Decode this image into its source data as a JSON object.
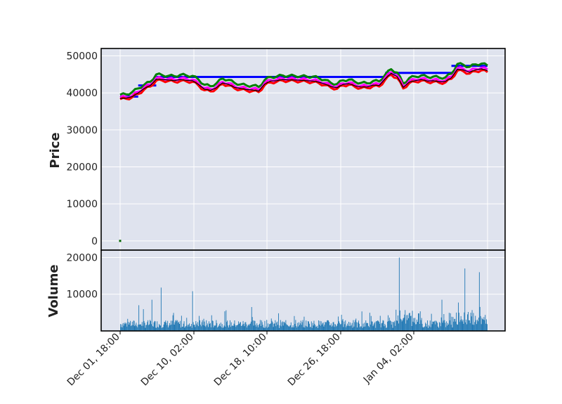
{
  "chart_data": {
    "type": "line",
    "title": "",
    "price_panel": {
      "ylabel": "Price",
      "ylim": [
        -2500,
        52000
      ],
      "yticks": [
        0,
        10000,
        20000,
        30000,
        40000,
        50000
      ],
      "series": [
        {
          "key": "upper",
          "color": "#008000",
          "values": [
            39500,
            39600,
            40200,
            41200,
            42200,
            43000,
            45000,
            44800,
            44600,
            44500,
            44900,
            44700,
            44600,
            43600,
            42200,
            41800,
            42600,
            43900,
            43500,
            42700,
            42300,
            42000,
            42000,
            41600,
            43500,
            44300,
            44400,
            44700,
            44600,
            44600,
            44500,
            44400,
            44400,
            44000,
            43500,
            42700,
            42400,
            43400,
            43600,
            43000,
            42700,
            42600,
            43200,
            43100,
            44900,
            46400,
            45500,
            42500,
            44000,
            44400,
            44700,
            44300,
            44400,
            44100,
            44200,
            45200,
            47800,
            47600,
            47000,
            47700,
            47900,
            47400
          ]
        },
        {
          "key": "middle",
          "color": "#ff00ff",
          "values": [
            38800,
            38900,
            39300,
            40300,
            41500,
            42300,
            44000,
            43900,
            43800,
            43600,
            43900,
            43800,
            43600,
            42600,
            41300,
            41000,
            41700,
            43000,
            42600,
            41800,
            41500,
            41200,
            41200,
            40800,
            42700,
            43500,
            43600,
            43900,
            43800,
            43800,
            43700,
            43600,
            43500,
            43200,
            42700,
            42000,
            41700,
            42600,
            42800,
            42200,
            41900,
            41900,
            42400,
            42300,
            44100,
            45600,
            44700,
            41800,
            43200,
            43600,
            43900,
            43500,
            43600,
            43300,
            43400,
            44400,
            46700,
            46500,
            45900,
            46500,
            46800,
            46300
          ]
        },
        {
          "key": "lower",
          "color": "#ff0000",
          "values": [
            38300,
            38400,
            38800,
            39700,
            40900,
            41700,
            43300,
            43300,
            43200,
            43000,
            43200,
            43100,
            43000,
            42000,
            40700,
            40400,
            41100,
            42400,
            42000,
            41200,
            40900,
            40600,
            40500,
            40200,
            42100,
            42800,
            43000,
            43300,
            43200,
            43200,
            43100,
            43000,
            42900,
            42600,
            42100,
            41400,
            41100,
            42000,
            42200,
            41600,
            41300,
            41300,
            41800,
            41700,
            43500,
            44900,
            44000,
            41200,
            42600,
            43000,
            43300,
            42900,
            43000,
            42700,
            42800,
            43800,
            46000,
            45800,
            45200,
            45800,
            46100,
            45600
          ]
        },
        {
          "key": "close",
          "color": "#000000",
          "values": [
            38500,
            38600,
            39000,
            40000,
            41200,
            42000,
            43700,
            43600,
            43500,
            43300,
            43600,
            43400,
            43300,
            42300,
            41000,
            40700,
            41400,
            42700,
            42300,
            41500,
            41200,
            40900,
            40800,
            40500,
            42400,
            43200,
            43300,
            43600,
            43500,
            43500,
            43400,
            43300,
            43200,
            42900,
            42400,
            41700,
            41400,
            42300,
            42500,
            41900,
            41600,
            41600,
            42100,
            42000,
            43800,
            45300,
            44400,
            41500,
            42900,
            43300,
            43600,
            43200,
            43300,
            43000,
            43100,
            44100,
            46400,
            46200,
            45600,
            46200,
            46500,
            46000
          ]
        }
      ],
      "levels": [
        {
          "key": "resistance",
          "color": "#0000ff",
          "segments": [
            [
              0,
              3,
              39000
            ],
            [
              3,
              6,
              42000
            ],
            [
              6,
              8,
              44300
            ],
            [
              8,
              44,
              44300
            ],
            [
              44,
              55,
              45400
            ],
            [
              55,
              61,
              47300
            ]
          ]
        }
      ],
      "outlier_point": {
        "index": 0,
        "value": 0,
        "color": "#006400"
      }
    },
    "volume_panel": {
      "ylabel": "Volume",
      "ylim": [
        0,
        22000
      ],
      "yticks": [
        10000,
        20000
      ],
      "color": "#1f77b4"
    },
    "x_axis": {
      "tick_labels": [
        "Dec 01, 18:00",
        "Dec 10, 02:00",
        "Dec 18, 10:00",
        "Dec 26, 18:00",
        "Jan 04, 02:00"
      ]
    }
  }
}
